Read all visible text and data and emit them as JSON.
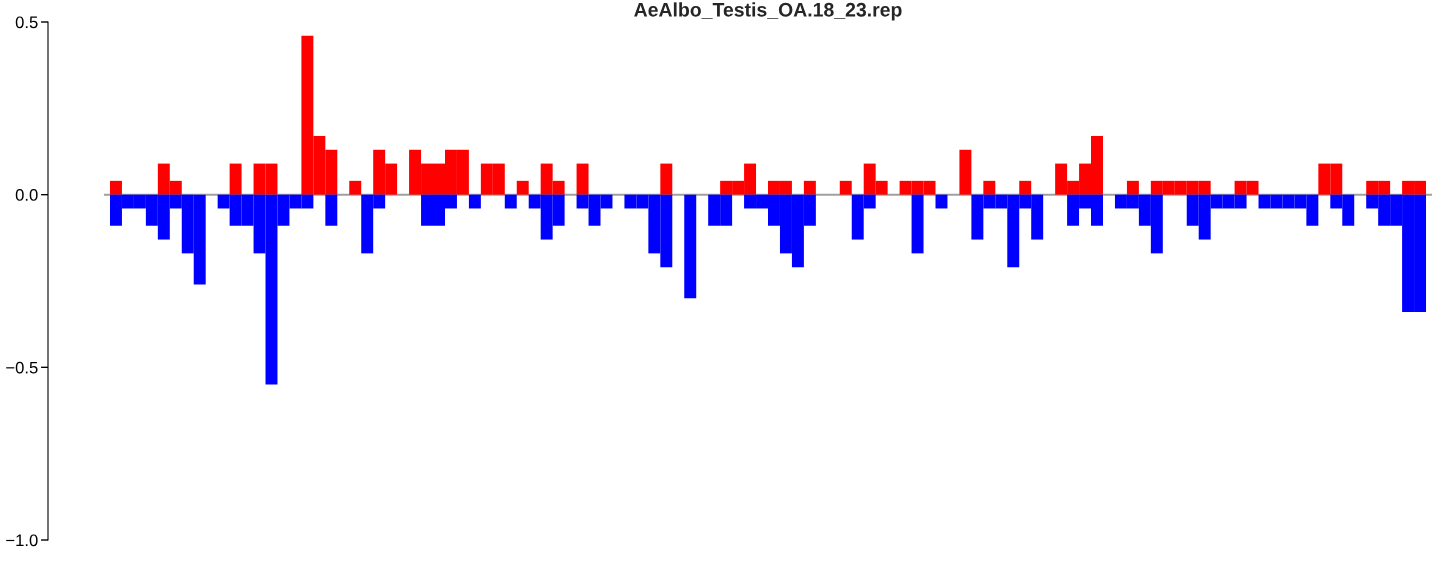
{
  "chart_data": {
    "type": "bar",
    "title": "AeAlbo_Testis_OA.18_23.rep",
    "categories": [
      null,
      null,
      null,
      null,
      null,
      null,
      null,
      null,
      null,
      null,
      null,
      null,
      null,
      null,
      null,
      null,
      null,
      null,
      null,
      null,
      null,
      null,
      null,
      null,
      null,
      null,
      null,
      null,
      null,
      null,
      null,
      null,
      null,
      null,
      null,
      null,
      null,
      null,
      null,
      null,
      null,
      null,
      null,
      null,
      null,
      null,
      null,
      null,
      null,
      null,
      null,
      null,
      null,
      null,
      null,
      null,
      null,
      null,
      null,
      null,
      null,
      null,
      null,
      null,
      null,
      null,
      null,
      null,
      null,
      null,
      null,
      null,
      null,
      null,
      null,
      null,
      null,
      null,
      null,
      null,
      null,
      null,
      null,
      null,
      null,
      null,
      null,
      null,
      null,
      null,
      null,
      null,
      null,
      null,
      null,
      null,
      null,
      null,
      null,
      null,
      null,
      null,
      null,
      null,
      null,
      null,
      null,
      null,
      null,
      null
    ],
    "series": [
      {
        "color": "#ff0000",
        "values": [
          0.04,
          null,
          null,
          null,
          0.09,
          0.04,
          null,
          null,
          null,
          null,
          0.09,
          null,
          0.09,
          0.09,
          null,
          null,
          0.46,
          0.17,
          0.13,
          null,
          0.04,
          null,
          0.13,
          0.09,
          null,
          0.13,
          0.09,
          0.09,
          0.13,
          0.13,
          null,
          0.09,
          0.09,
          null,
          0.04,
          null,
          0.09,
          0.04,
          null,
          0.09,
          null,
          null,
          null,
          null,
          null,
          null,
          0.09,
          null,
          null,
          null,
          null,
          0.04,
          0.04,
          0.09,
          null,
          0.04,
          0.04,
          null,
          0.04,
          null,
          null,
          0.04,
          null,
          0.09,
          0.04,
          null,
          0.04,
          0.04,
          0.04,
          null,
          null,
          0.13,
          null,
          0.04,
          null,
          null,
          0.04,
          null,
          null,
          0.09,
          0.04,
          0.09,
          0.17,
          null,
          null,
          0.04,
          null,
          0.04,
          0.04,
          0.04,
          0.04,
          0.04,
          null,
          null,
          0.04,
          0.04,
          null,
          null,
          null,
          null,
          null,
          0.09,
          0.09,
          null,
          null,
          0.04,
          0.04,
          null,
          0.04,
          0.04
        ]
      },
      {
        "color": "#0000ff",
        "values": [
          -0.09,
          -0.04,
          -0.04,
          -0.09,
          -0.13,
          -0.04,
          -0.17,
          -0.26,
          null,
          -0.04,
          -0.09,
          -0.09,
          -0.17,
          -0.55,
          -0.09,
          -0.04,
          -0.04,
          null,
          -0.09,
          null,
          null,
          -0.17,
          -0.04,
          null,
          null,
          null,
          -0.09,
          -0.09,
          -0.04,
          null,
          -0.04,
          null,
          null,
          -0.04,
          null,
          -0.04,
          -0.13,
          -0.09,
          null,
          -0.04,
          -0.09,
          -0.04,
          null,
          -0.04,
          -0.04,
          -0.17,
          -0.21,
          null,
          -0.3,
          null,
          -0.09,
          -0.09,
          null,
          -0.04,
          -0.04,
          -0.09,
          -0.17,
          -0.21,
          -0.09,
          null,
          null,
          null,
          -0.13,
          -0.04,
          null,
          null,
          null,
          -0.17,
          null,
          -0.04,
          null,
          null,
          -0.13,
          -0.04,
          -0.04,
          -0.21,
          -0.04,
          -0.13,
          null,
          null,
          -0.09,
          -0.04,
          -0.09,
          null,
          -0.04,
          -0.04,
          -0.09,
          -0.17,
          null,
          null,
          -0.09,
          -0.13,
          -0.04,
          -0.04,
          -0.04,
          null,
          -0.04,
          -0.04,
          -0.04,
          -0.04,
          -0.09,
          null,
          -0.04,
          -0.09,
          null,
          -0.04,
          -0.09,
          -0.09,
          -0.34,
          -0.34
        ]
      }
    ],
    "ylim": [
      -1.0,
      0.5
    ],
    "yticks": [
      {
        "value": -1.0,
        "label": "−1.0"
      },
      {
        "value": -0.5,
        "label": "−0.5"
      },
      {
        "value": 0.0,
        "label": "0.0"
      },
      {
        "value": 0.5,
        "label": "0.5"
      }
    ],
    "ref_lines": [
      {
        "axis": "y",
        "value": 0,
        "color": "#a0a0a0"
      }
    ],
    "tick_labels": "y",
    "grid": false,
    "legend": false
  }
}
